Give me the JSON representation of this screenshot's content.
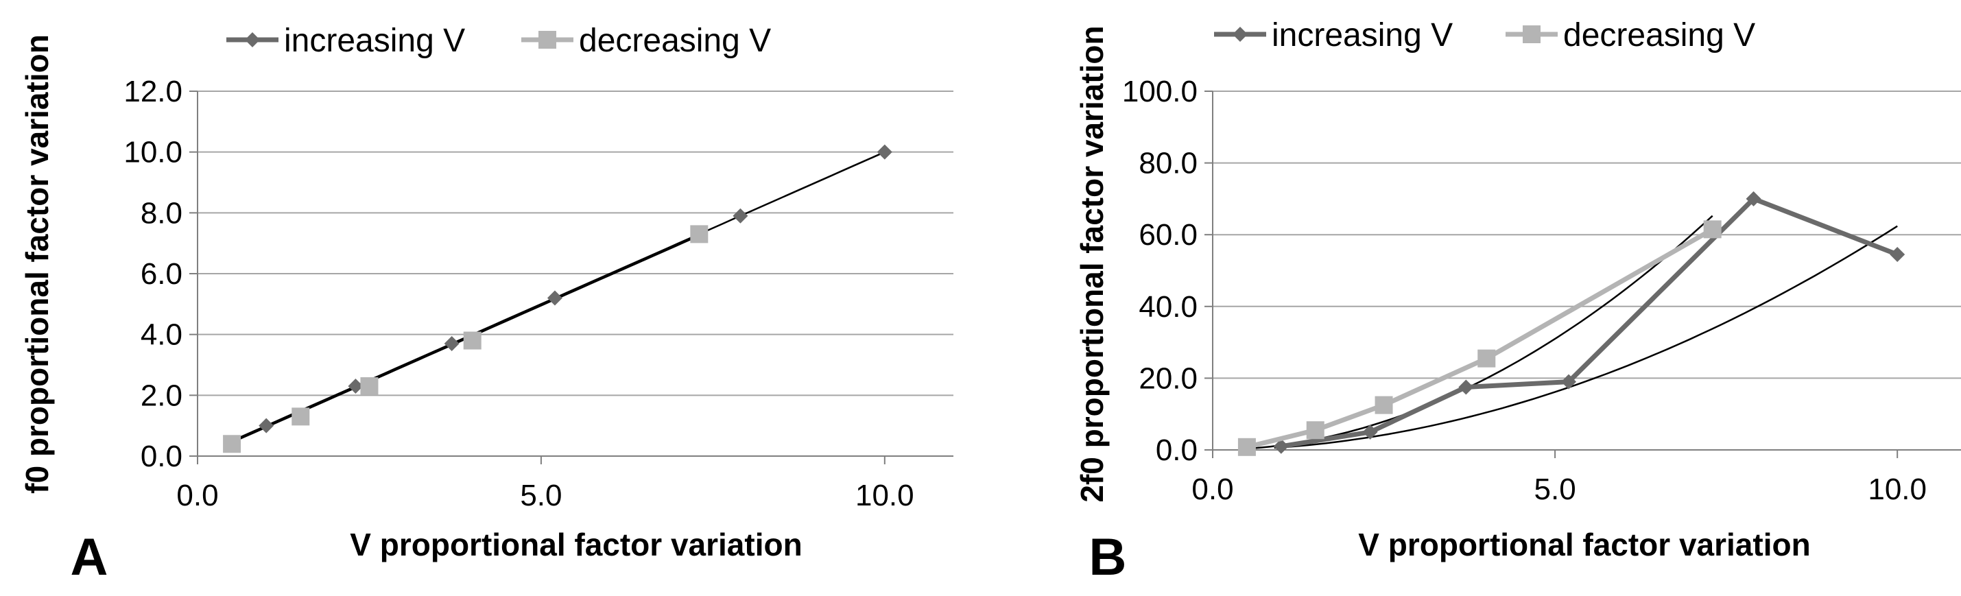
{
  "chart_data": [
    {
      "type": "line",
      "panel_label": "A",
      "title": "",
      "xlabel": "V proportional factor variation",
      "ylabel": "f0 proportional factor variation",
      "xlim": [
        0,
        11
      ],
      "ylim": [
        0,
        12
      ],
      "x_ticks": [
        {
          "value": 0,
          "label": "0.0"
        },
        {
          "value": 5,
          "label": "5.0"
        },
        {
          "value": 10,
          "label": "10.0"
        }
      ],
      "y_ticks": [
        {
          "value": 0,
          "label": "0.0"
        },
        {
          "value": 2,
          "label": "2.0"
        },
        {
          "value": 4,
          "label": "4.0"
        },
        {
          "value": 6,
          "label": "6.0"
        },
        {
          "value": 8,
          "label": "8.0"
        },
        {
          "value": 10,
          "label": "10.0"
        },
        {
          "value": 12,
          "label": "12.0"
        }
      ],
      "grid": "horizontal",
      "legend_position": "top",
      "series": [
        {
          "name": "increasing V",
          "marker": "diamond",
          "color": "#6a6a6a",
          "show_line": false,
          "points": [
            [
              1.0,
              1.0
            ],
            [
              2.3,
              2.3
            ],
            [
              3.7,
              3.7
            ],
            [
              5.2,
              5.2
            ],
            [
              7.9,
              7.9
            ],
            [
              10.0,
              10.0
            ]
          ]
        },
        {
          "name": "decreasing V",
          "marker": "square",
          "color": "#b4b4b4",
          "show_line": false,
          "points": [
            [
              0.5,
              0.4
            ],
            [
              1.5,
              1.3
            ],
            [
              2.5,
              2.3
            ],
            [
              4.0,
              3.8
            ],
            [
              7.3,
              7.3
            ]
          ]
        }
      ],
      "trendlines": [
        {
          "kind": "linear",
          "x_range": [
            0.5,
            10.0
          ],
          "slope": 1.0,
          "intercept": 0.0,
          "color": "#000000"
        },
        {
          "kind": "linear",
          "x_range": [
            0.5,
            7.3
          ],
          "slope": 1.0,
          "intercept": -0.05,
          "color": "#000000"
        }
      ]
    },
    {
      "type": "line",
      "panel_label": "B",
      "title": "",
      "xlabel": "V proportional factor variation",
      "ylabel": "2f0 proportional factor variation",
      "xlim": [
        0,
        11
      ],
      "ylim": [
        0,
        100
      ],
      "x_ticks": [
        {
          "value": 0,
          "label": "0.0"
        },
        {
          "value": 5,
          "label": "5.0"
        },
        {
          "value": 10,
          "label": "10.0"
        }
      ],
      "y_ticks": [
        {
          "value": 0,
          "label": "0.0"
        },
        {
          "value": 20,
          "label": "20.0"
        },
        {
          "value": 40,
          "label": "40.0"
        },
        {
          "value": 60,
          "label": "60.0"
        },
        {
          "value": 80,
          "label": "80.0"
        },
        {
          "value": 100,
          "label": "100.0"
        }
      ],
      "grid": "horizontal",
      "legend_position": "top",
      "series": [
        {
          "name": "increasing V",
          "marker": "diamond",
          "color": "#6a6a6a",
          "show_line": true,
          "points": [
            [
              1.0,
              1.0
            ],
            [
              2.3,
              5.0
            ],
            [
              3.7,
              17.5
            ],
            [
              5.2,
              19.0
            ],
            [
              7.9,
              70.0
            ],
            [
              10.0,
              54.5
            ]
          ]
        },
        {
          "name": "decreasing V",
          "marker": "square",
          "color": "#b4b4b4",
          "show_line": true,
          "points": [
            [
              0.5,
              0.8
            ],
            [
              1.5,
              5.5
            ],
            [
              2.5,
              12.5
            ],
            [
              4.0,
              25.5
            ],
            [
              7.3,
              61.5
            ]
          ]
        }
      ],
      "trendlines": [
        {
          "kind": "power",
          "x_range": [
            0.9,
            10.0
          ],
          "coef": 0.7,
          "exponent": 1.95,
          "color": "#000000"
        },
        {
          "kind": "power",
          "x_range": [
            0.5,
            7.3
          ],
          "coef": 1.3,
          "exponent": 1.97,
          "color": "#000000"
        }
      ]
    }
  ]
}
